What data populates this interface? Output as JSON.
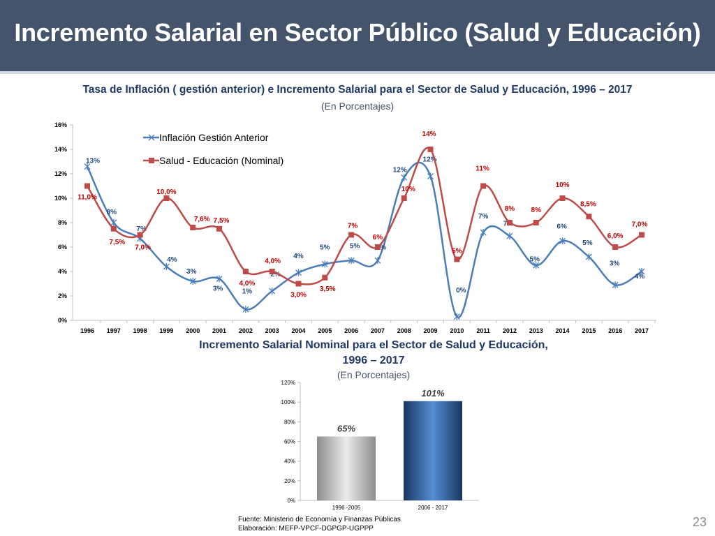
{
  "header": {
    "title": "Incremento Salarial en Sector Público (Salud y Educación)"
  },
  "footer": {
    "source": "Fuente: Ministerio de Economía y Finanzas Públicas",
    "elaboration": "Elaboración: MEFP-VPCF-DGPGP-UGPPP",
    "page_number": "23"
  },
  "chart_data": [
    {
      "type": "line",
      "title": "Tasa de Inflación ( gestión anterior) e Incremento Salarial para el Sector de Salud y Educación, 1996 – 2017",
      "subtitle": "(En Porcentajes)",
      "x": [
        "1996",
        "1997",
        "1998",
        "1999",
        "2000",
        "2001",
        "2002",
        "2003",
        "2004",
        "2005",
        "2006",
        "2007",
        "2008",
        "2009",
        "2010",
        "2011",
        "2012",
        "2013",
        "2014",
        "2015",
        "2016",
        "2017"
      ],
      "ylim": [
        0,
        16
      ],
      "yticks": [
        "0%",
        "2%",
        "4%",
        "6%",
        "8%",
        "10%",
        "12%",
        "14%",
        "16%"
      ],
      "legend_position": "top-left",
      "series": [
        {
          "name": "Inflación Gestión Anterior",
          "color": "#4a7ebb",
          "marker": "star",
          "values": [
            12.6,
            8.0,
            6.7,
            4.4,
            3.2,
            3.4,
            0.9,
            2.4,
            3.9,
            4.6,
            4.9,
            4.9,
            11.7,
            11.8,
            0.3,
            7.2,
            6.9,
            4.5,
            6.5,
            5.2,
            2.9,
            4.0
          ],
          "labels": [
            "13%",
            "8%",
            "7%",
            "4%",
            "3%",
            "3%",
            "1%",
            "2%",
            "4%",
            "5%",
            "5%",
            "5%",
            "12%",
            "12%",
            "0%",
            "7%",
            "7%",
            "5%",
            "6%",
            "5%",
            "3%",
            "4%"
          ]
        },
        {
          "name": "Salud - Educación (Nominal)",
          "color": "#be4b48",
          "marker": "square",
          "values": [
            11.0,
            7.5,
            7.0,
            10.0,
            7.6,
            7.5,
            4.0,
            4.0,
            3.0,
            3.5,
            7.0,
            6.0,
            10.0,
            14.0,
            5.0,
            11.0,
            8.0,
            8.0,
            10.0,
            8.5,
            6.0,
            7.0
          ],
          "labels": [
            "11,0%",
            "7,5%",
            "7,0%",
            "10,0%",
            "7,6%",
            "7,5%",
            "4,0%",
            "4,0%",
            "3,0%",
            "3,5%",
            "7%",
            "6%",
            "10%",
            "14%",
            "5%",
            "11%",
            "8%",
            "8%",
            "10%",
            "8,5%",
            "6,0%",
            "7,0%"
          ]
        }
      ]
    },
    {
      "type": "bar",
      "title": "Incremento Salarial Nominal para el Sector de Salud y Educación, 1996 – 2017",
      "subtitle": "(En Porcentajes)",
      "categories": [
        "1996 -2005",
        "2006 - 2017"
      ],
      "values": [
        65,
        101
      ],
      "labels": [
        "65%",
        "101%"
      ],
      "ylim": [
        0,
        120
      ],
      "yticks": [
        "0%",
        "20%",
        "40%",
        "60%",
        "80%",
        "100%",
        "120%"
      ]
    }
  ]
}
